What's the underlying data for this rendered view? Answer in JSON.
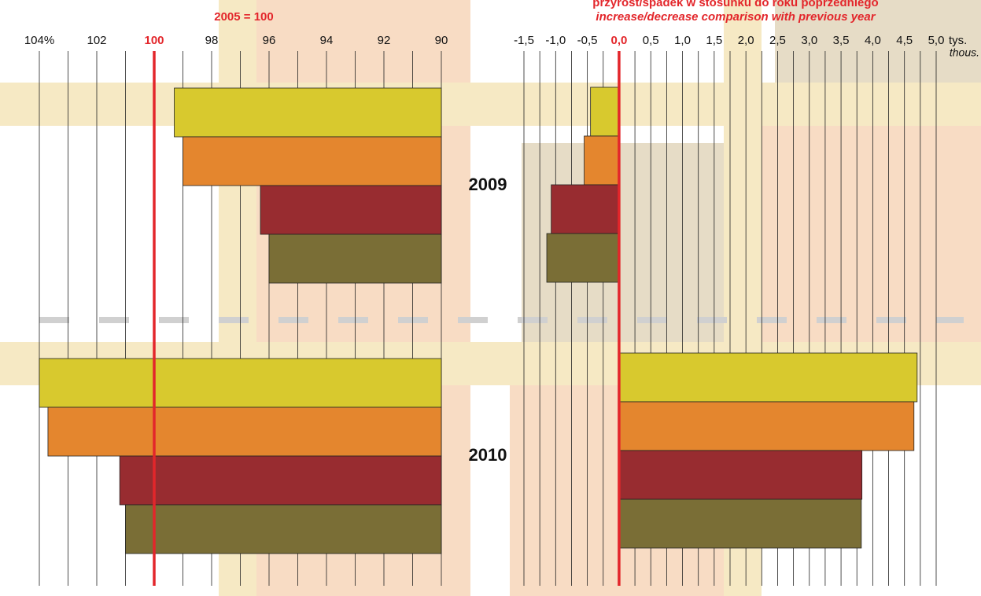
{
  "chart_data": [
    {
      "type": "bar",
      "orientation": "horizontal",
      "title": "2005 = 100",
      "categories": [
        "2009",
        "2010"
      ],
      "series": [
        {
          "color": "#d8c92e",
          "values": [
            99.3,
            104.0
          ]
        },
        {
          "color": "#e4862e",
          "values": [
            99.0,
            103.7
          ]
        },
        {
          "color": "#982c30",
          "values": [
            96.3,
            101.2
          ]
        },
        {
          "color": "#7a6e36",
          "values": [
            96.0,
            101.0
          ]
        }
      ],
      "xlim": [
        104,
        90
      ],
      "xticks": [
        {
          "value": 104,
          "label": "104%"
        },
        102,
        100,
        98,
        96,
        94,
        92,
        90
      ],
      "ref_value": 100,
      "ref_color": "#e3262b",
      "grid": true
    },
    {
      "type": "bar",
      "orientation": "horizontal",
      "title": "przyrost/spadek w stosunku do roku poprzedniego",
      "subtitle": "increase/decrease comparison with previous year",
      "unit": "tys.",
      "unit_en": "thous.",
      "categories": [
        "2009",
        "2010"
      ],
      "series": [
        {
          "color": "#d8c92e",
          "values": [
            -0.45,
            4.7
          ]
        },
        {
          "color": "#e4862e",
          "values": [
            -0.55,
            4.65
          ]
        },
        {
          "color": "#982c30",
          "values": [
            -1.07,
            3.83
          ]
        },
        {
          "color": "#7a6e36",
          "values": [
            -1.14,
            3.82
          ]
        }
      ],
      "xlim": [
        -1.5,
        5.0
      ],
      "xticks": [
        {
          "value": -1.5,
          "label": "-1,5"
        },
        {
          "value": -1.0,
          "label": "-1,0"
        },
        {
          "value": -0.5,
          "label": "-0,5"
        },
        {
          "value": 0,
          "label": "0,0"
        },
        {
          "value": 0.5,
          "label": "0,5"
        },
        {
          "value": 1.0,
          "label": "1,0"
        },
        {
          "value": 1.5,
          "label": "1,5"
        },
        {
          "value": 2.0,
          "label": "2,0"
        },
        {
          "value": 2.5,
          "label": "2,5"
        },
        {
          "value": 3.0,
          "label": "3,0"
        },
        {
          "value": 3.5,
          "label": "3,5"
        },
        {
          "value": 4.0,
          "label": "4,0"
        },
        {
          "value": 4.5,
          "label": "4,5"
        },
        {
          "value": 5.0,
          "label": "5,0"
        }
      ],
      "ref_value": 0,
      "ref_color": "#e3262b",
      "grid": true
    }
  ]
}
